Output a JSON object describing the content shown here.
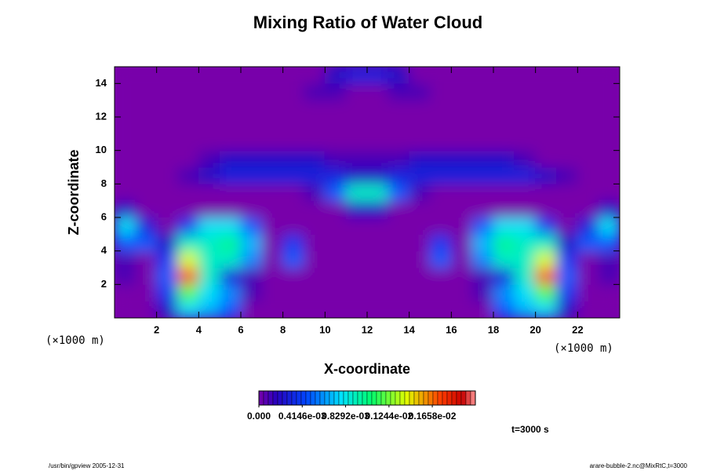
{
  "chart_data": {
    "type": "heatmap",
    "title": "Mixing Ratio of Water Cloud",
    "xlabel": "X-coordinate",
    "ylabel": "Z-coordinate",
    "x_unit": "(×1000 m)",
    "y_unit": "(×1000 m)",
    "xlim": [
      0,
      24
    ],
    "ylim": [
      0,
      15
    ],
    "xticks": [
      2,
      4,
      6,
      8,
      10,
      12,
      14,
      16,
      18,
      20,
      22
    ],
    "yticks": [
      2,
      4,
      6,
      8,
      10,
      12,
      14
    ],
    "x": [
      0.5,
      1.5,
      2.5,
      3.5,
      4.5,
      5.5,
      6.5,
      7.5,
      8.5,
      9.5,
      10.5,
      11.5,
      12.5,
      13.5,
      14.5,
      15.5,
      16.5,
      17.5,
      18.5,
      19.5,
      20.5,
      21.5,
      22.5,
      23.5
    ],
    "y": [
      0.5,
      1.5,
      2.5,
      3.5,
      4.5,
      5.5,
      6.5,
      7.5,
      8.5,
      9.5,
      10.5,
      11.5,
      12.5,
      13.5,
      14.5
    ],
    "values": [
      [
        0,
        0,
        0.0002,
        0.0008,
        0.0007,
        0.0005,
        0,
        0,
        0,
        0,
        0,
        0,
        0,
        0,
        0,
        0,
        0,
        0,
        0.0005,
        0.0007,
        0.0008,
        0.0002,
        0,
        0
      ],
      [
        0,
        0,
        0.0004,
        0.0012,
        0.0008,
        0.0006,
        0.0001,
        0,
        0,
        0,
        0,
        0,
        0,
        0,
        0,
        0,
        0,
        0.0001,
        0.0006,
        0.0008,
        0.0012,
        0.0004,
        0,
        0
      ],
      [
        0.0001,
        0,
        0.0005,
        0.0017,
        0.0009,
        0.0003,
        0.0001,
        0,
        0,
        0,
        0,
        0,
        0,
        0,
        0,
        0,
        0,
        0.0001,
        0.0003,
        0.0009,
        0.0017,
        0.0005,
        0,
        0.0001
      ],
      [
        0.0001,
        0,
        0.0004,
        0.0014,
        0.0009,
        0.0009,
        0.0006,
        0,
        0.0005,
        0,
        0,
        0,
        0,
        0,
        0,
        0.0005,
        0,
        0.0006,
        0.0009,
        0.0009,
        0.0014,
        0.0004,
        0,
        0.0001
      ],
      [
        0.0005,
        0.0005,
        0.0002,
        0.0009,
        0.0009,
        0.001,
        0.0007,
        0,
        0.0004,
        0,
        0,
        0,
        0,
        0,
        0,
        0.0004,
        0,
        0.0007,
        0.001,
        0.0009,
        0.0009,
        0.0002,
        0.0005,
        0.0005
      ],
      [
        0.0008,
        0.0003,
        0,
        0.0004,
        0.0008,
        0.0008,
        0.0005,
        0,
        0,
        0,
        0,
        0,
        0,
        0,
        0,
        0,
        0,
        0.0005,
        0.0008,
        0.0008,
        0.0004,
        0,
        0.0003,
        0.0008
      ],
      [
        0.0002,
        0,
        0,
        0,
        0,
        0,
        0,
        0,
        0,
        0,
        0,
        0.0002,
        0.0002,
        0,
        0,
        0,
        0,
        0,
        0,
        0,
        0,
        0,
        0,
        0.0002
      ],
      [
        0,
        0,
        0,
        0,
        0,
        0,
        0,
        0,
        0,
        0.0001,
        0.0005,
        0.0009,
        0.0009,
        0.0005,
        0.0001,
        0,
        0,
        0,
        0,
        0,
        0,
        0,
        0,
        0
      ],
      [
        0,
        0,
        0,
        0.0001,
        0.0002,
        0.0003,
        0.0003,
        0.0003,
        0.0003,
        0.0003,
        0.0003,
        0.0002,
        0.0002,
        0.0003,
        0.0003,
        0.0003,
        0.0003,
        0.0003,
        0.0003,
        0.0003,
        0.0002,
        0.0001,
        0,
        0
      ],
      [
        0,
        0,
        0,
        0,
        0.0001,
        0.0002,
        0.0002,
        0.0002,
        0.0002,
        0.0002,
        0.0001,
        0.0001,
        0.0001,
        0.0001,
        0.0002,
        0.0002,
        0.0002,
        0.0002,
        0.0002,
        0.0001,
        0,
        0,
        0,
        0
      ],
      [
        0,
        0,
        0,
        0,
        0,
        0,
        0,
        0,
        0,
        0,
        0,
        0,
        0,
        0,
        0,
        0,
        0,
        0,
        0,
        0,
        0,
        0,
        0,
        0
      ],
      [
        0,
        0,
        0,
        0,
        0,
        0,
        0,
        0,
        0,
        0,
        0,
        0,
        0,
        0,
        0,
        0,
        0,
        0,
        0,
        0,
        0,
        0,
        0,
        0
      ],
      [
        0,
        0,
        0,
        0,
        0,
        0,
        0,
        0,
        0,
        0,
        0,
        0,
        0,
        0,
        0,
        0,
        0,
        0,
        0,
        0,
        0,
        0,
        0,
        0
      ],
      [
        0,
        0,
        0,
        0,
        0,
        0,
        0,
        0,
        0,
        0.0001,
        0.0001,
        0,
        0,
        0.0001,
        0.0001,
        0,
        0,
        0,
        0,
        0,
        0,
        0,
        0,
        0
      ],
      [
        0,
        0,
        0,
        0,
        0,
        0,
        0,
        0,
        0,
        0,
        0.0002,
        0.0003,
        0.0003,
        0.0002,
        0,
        0,
        0,
        0,
        0,
        0,
        0,
        0,
        0,
        0
      ]
    ],
    "clim": [
      0,
      0.00207
    ],
    "cticks": [
      {
        "value": 0,
        "label": "0.000"
      },
      {
        "value": 0.0004146,
        "label": "0.4146e-03"
      },
      {
        "value": 0.0008292,
        "label": "0.8292e-03"
      },
      {
        "value": 0.001244,
        "label": "0.1244e-02"
      },
      {
        "value": 0.001658,
        "label": "0.1658e-02"
      }
    ],
    "annotation": "t=3000 s",
    "footer_left": "/usr/bin/gpview 2005-12-31",
    "footer_right": "arare-bubble-2.nc@MixRtC,t=3000"
  }
}
